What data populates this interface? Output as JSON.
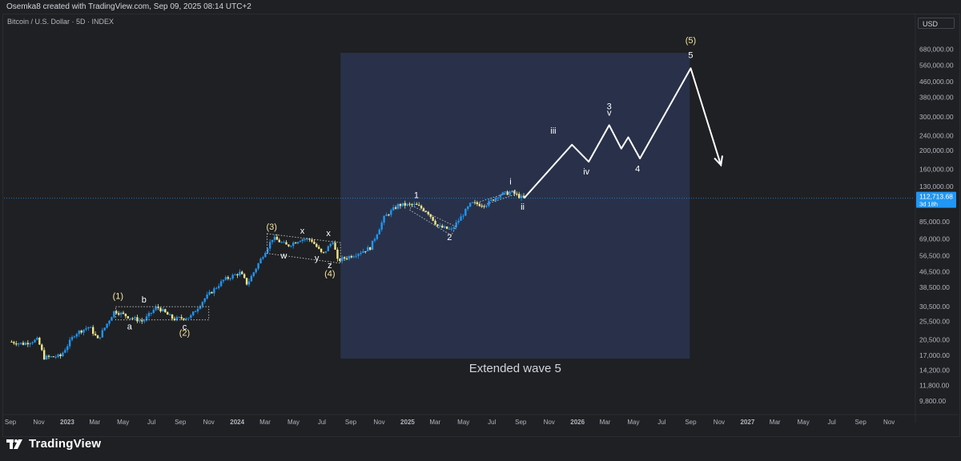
{
  "credit": "Osemka8 created with TradingView.com, Sep 09, 2025 08:14 UTC+2",
  "brand": "TradingView",
  "colors": {
    "background": "#1f2023",
    "highlight_zone": "#2a3550",
    "up_candle": "#2196f3",
    "down_candle": "#f0e68c",
    "projection": "#ffffff",
    "label_yellow": "#f5e6a0",
    "price_tag": "#2196f3"
  },
  "chart_data": {
    "type": "candlestick",
    "title": "Bitcoin / U.S. Dollar · 5D · INDEX",
    "y_scale": "log",
    "currency": "USD",
    "ylim": [
      8800,
      820000
    ],
    "x_start": "2022-09-01",
    "x_end": "2027-11-30",
    "y_ticks": [
      "680,000.00",
      "560,000.00",
      "460,000.00",
      "380,000.00",
      "300,000.00",
      "240,000.00",
      "200,000.00",
      "160,000.00",
      "130,000.00",
      "85,000.00",
      "69,000.00",
      "56,500.00",
      "46,500.00",
      "38,500.00",
      "30,500.00",
      "25,500.00",
      "20,500.00",
      "17,000.00",
      "14,200.00",
      "11,800.00",
      "9,800.00"
    ],
    "y_tick_values": [
      680000,
      560000,
      460000,
      380000,
      300000,
      240000,
      200000,
      160000,
      130000,
      85000,
      69000,
      56500,
      46500,
      38500,
      30500,
      25500,
      20500,
      17000,
      14200,
      11800,
      9800
    ],
    "x_ticks": [
      {
        "label": "Sep",
        "date": "2022-09-01"
      },
      {
        "label": "Nov",
        "date": "2022-11-01"
      },
      {
        "label": "2023",
        "date": "2023-01-01"
      },
      {
        "label": "Mar",
        "date": "2023-03-01"
      },
      {
        "label": "May",
        "date": "2023-05-01"
      },
      {
        "label": "Jul",
        "date": "2023-07-01"
      },
      {
        "label": "Sep",
        "date": "2023-09-01"
      },
      {
        "label": "Nov",
        "date": "2023-11-01"
      },
      {
        "label": "2024",
        "date": "2024-01-01"
      },
      {
        "label": "Mar",
        "date": "2024-03-01"
      },
      {
        "label": "May",
        "date": "2024-05-01"
      },
      {
        "label": "Jul",
        "date": "2024-07-01"
      },
      {
        "label": "Sep",
        "date": "2024-09-01"
      },
      {
        "label": "Nov",
        "date": "2024-11-01"
      },
      {
        "label": "2025",
        "date": "2025-01-01"
      },
      {
        "label": "Mar",
        "date": "2025-03-01"
      },
      {
        "label": "May",
        "date": "2025-05-01"
      },
      {
        "label": "Jul",
        "date": "2025-07-01"
      },
      {
        "label": "Sep",
        "date": "2025-09-01"
      },
      {
        "label": "Nov",
        "date": "2025-11-01"
      },
      {
        "label": "2026",
        "date": "2026-01-01"
      },
      {
        "label": "Mar",
        "date": "2026-03-01"
      },
      {
        "label": "May",
        "date": "2026-05-01"
      },
      {
        "label": "Jul",
        "date": "2026-07-01"
      },
      {
        "label": "Sep",
        "date": "2026-09-01"
      },
      {
        "label": "Nov",
        "date": "2026-11-01"
      },
      {
        "label": "2027",
        "date": "2027-01-01"
      },
      {
        "label": "Mar",
        "date": "2027-03-01"
      },
      {
        "label": "May",
        "date": "2027-05-01"
      },
      {
        "label": "Jul",
        "date": "2027-07-01"
      },
      {
        "label": "Sep",
        "date": "2027-09-01"
      },
      {
        "label": "Nov",
        "date": "2027-11-01"
      }
    ],
    "current_price": {
      "value": 112713.68,
      "label": "112,713.68",
      "countdown": "3d 18h"
    },
    "price_path": [
      [
        "2022-09-01",
        20000
      ],
      [
        "2022-10-01",
        19500
      ],
      [
        "2022-11-01",
        20500
      ],
      [
        "2022-11-15",
        16500
      ],
      [
        "2022-12-20",
        16800
      ],
      [
        "2023-01-20",
        22000
      ],
      [
        "2023-02-20",
        24000
      ],
      [
        "2023-03-10",
        20500
      ],
      [
        "2023-04-15",
        29000
      ],
      [
        "2023-05-15",
        27000
      ],
      [
        "2023-06-15",
        25500
      ],
      [
        "2023-07-15",
        30500
      ],
      [
        "2023-08-20",
        26200
      ],
      [
        "2023-09-25",
        27000
      ],
      [
        "2023-10-25",
        33500
      ],
      [
        "2023-12-05",
        42000
      ],
      [
        "2024-01-10",
        46000
      ],
      [
        "2024-01-25",
        40000
      ],
      [
        "2024-03-01",
        58000
      ],
      [
        "2024-03-20",
        70000
      ],
      [
        "2024-04-20",
        63500
      ],
      [
        "2024-05-20",
        69000
      ],
      [
        "2024-06-10",
        68500
      ],
      [
        "2024-07-05",
        57000
      ],
      [
        "2024-07-28",
        68000
      ],
      [
        "2024-08-05",
        53000
      ],
      [
        "2024-09-10",
        57000
      ],
      [
        "2024-10-15",
        62000
      ],
      [
        "2024-11-15",
        90000
      ],
      [
        "2024-12-15",
        104000
      ],
      [
        "2025-01-20",
        104000
      ],
      [
        "2025-02-15",
        96000
      ],
      [
        "2025-03-10",
        80000
      ],
      [
        "2025-04-08",
        77000
      ],
      [
        "2025-05-20",
        106000
      ],
      [
        "2025-06-20",
        104000
      ],
      [
        "2025-07-20",
        118000
      ],
      [
        "2025-08-15",
        121000
      ],
      [
        "2025-09-08",
        112700
      ]
    ],
    "projection": [
      [
        "2025-09-08",
        112700
      ],
      [
        "2025-12-20",
        215000
      ],
      [
        "2026-01-25",
        175000
      ],
      [
        "2026-03-10",
        272000
      ],
      [
        "2026-04-05",
        205000
      ],
      [
        "2026-04-20",
        235000
      ],
      [
        "2026-05-15",
        182000
      ],
      [
        "2026-09-01",
        540000
      ],
      [
        "2026-11-05",
        168000
      ]
    ],
    "highlight_zone": {
      "start": "2024-08-10",
      "end": "2026-08-30",
      "top": 650000,
      "bottom": 16300,
      "label": "Extended wave 5"
    },
    "channels": [
      {
        "points": [
          [
            "2023-04-15",
            30500
          ],
          [
            "2023-11-01",
            30500
          ],
          [
            "2023-11-01",
            26000
          ],
          [
            "2023-04-15",
            26000
          ]
        ]
      },
      {
        "points": [
          [
            "2024-03-05",
            73500
          ],
          [
            "2024-08-10",
            66000
          ],
          [
            "2024-08-10",
            51500
          ],
          [
            "2024-03-05",
            58000
          ]
        ]
      },
      {
        "points": [
          [
            "2025-01-10",
            103000
          ],
          [
            "2025-04-15",
            80000
          ],
          [
            "2025-04-05",
            72000
          ],
          [
            "2025-01-05",
            98000
          ]
        ]
      },
      {
        "points": [
          [
            "2025-06-05",
            108000
          ],
          [
            "2025-08-20",
            124000
          ],
          [
            "2025-08-20",
            118000
          ],
          [
            "2025-06-05",
            102000
          ]
        ]
      }
    ],
    "wave_labels": [
      {
        "text": "(1)",
        "date": "2023-04-20",
        "price": 33500,
        "color": "yellow"
      },
      {
        "text": "b",
        "date": "2023-06-15",
        "price": 32000,
        "color": "white"
      },
      {
        "text": "a",
        "date": "2023-05-15",
        "price": 23200,
        "color": "white"
      },
      {
        "text": "c",
        "date": "2023-09-10",
        "price": 23100,
        "color": "white"
      },
      {
        "text": "(2)",
        "date": "2023-09-10",
        "price": 21500,
        "color": "yellow"
      },
      {
        "text": "(3)",
        "date": "2024-03-15",
        "price": 77000,
        "color": "yellow"
      },
      {
        "text": "x",
        "date": "2024-05-20",
        "price": 73500,
        "color": "white"
      },
      {
        "text": "w",
        "date": "2024-04-10",
        "price": 54500,
        "color": "white"
      },
      {
        "text": "y",
        "date": "2024-06-20",
        "price": 53000,
        "color": "white"
      },
      {
        "text": "x",
        "date": "2024-07-15",
        "price": 71500,
        "color": "white"
      },
      {
        "text": "z",
        "date": "2024-07-18",
        "price": 48500,
        "color": "white"
      },
      {
        "text": "(4)",
        "date": "2024-07-18",
        "price": 43800,
        "color": "yellow"
      },
      {
        "text": "1",
        "date": "2025-01-20",
        "price": 113000,
        "color": "white"
      },
      {
        "text": "2",
        "date": "2025-04-01",
        "price": 68000,
        "color": "white"
      },
      {
        "text": "i",
        "date": "2025-08-10",
        "price": 133000,
        "color": "white"
      },
      {
        "text": "ii",
        "date": "2025-09-05",
        "price": 98000,
        "color": "white"
      },
      {
        "text": "iii",
        "date": "2025-11-10",
        "price": 245000,
        "color": "white"
      },
      {
        "text": "iv",
        "date": "2026-01-20",
        "price": 150000,
        "color": "white"
      },
      {
        "text": "3",
        "date": "2026-03-10",
        "price": 330000,
        "color": "white"
      },
      {
        "text": "v",
        "date": "2026-03-10",
        "price": 305000,
        "color": "white"
      },
      {
        "text": "4",
        "date": "2026-05-10",
        "price": 155000,
        "color": "white"
      },
      {
        "text": "(5)",
        "date": "2026-09-01",
        "price": 730000,
        "color": "yellow"
      },
      {
        "text": "5",
        "date": "2026-09-01",
        "price": 610000,
        "color": "white"
      }
    ]
  }
}
